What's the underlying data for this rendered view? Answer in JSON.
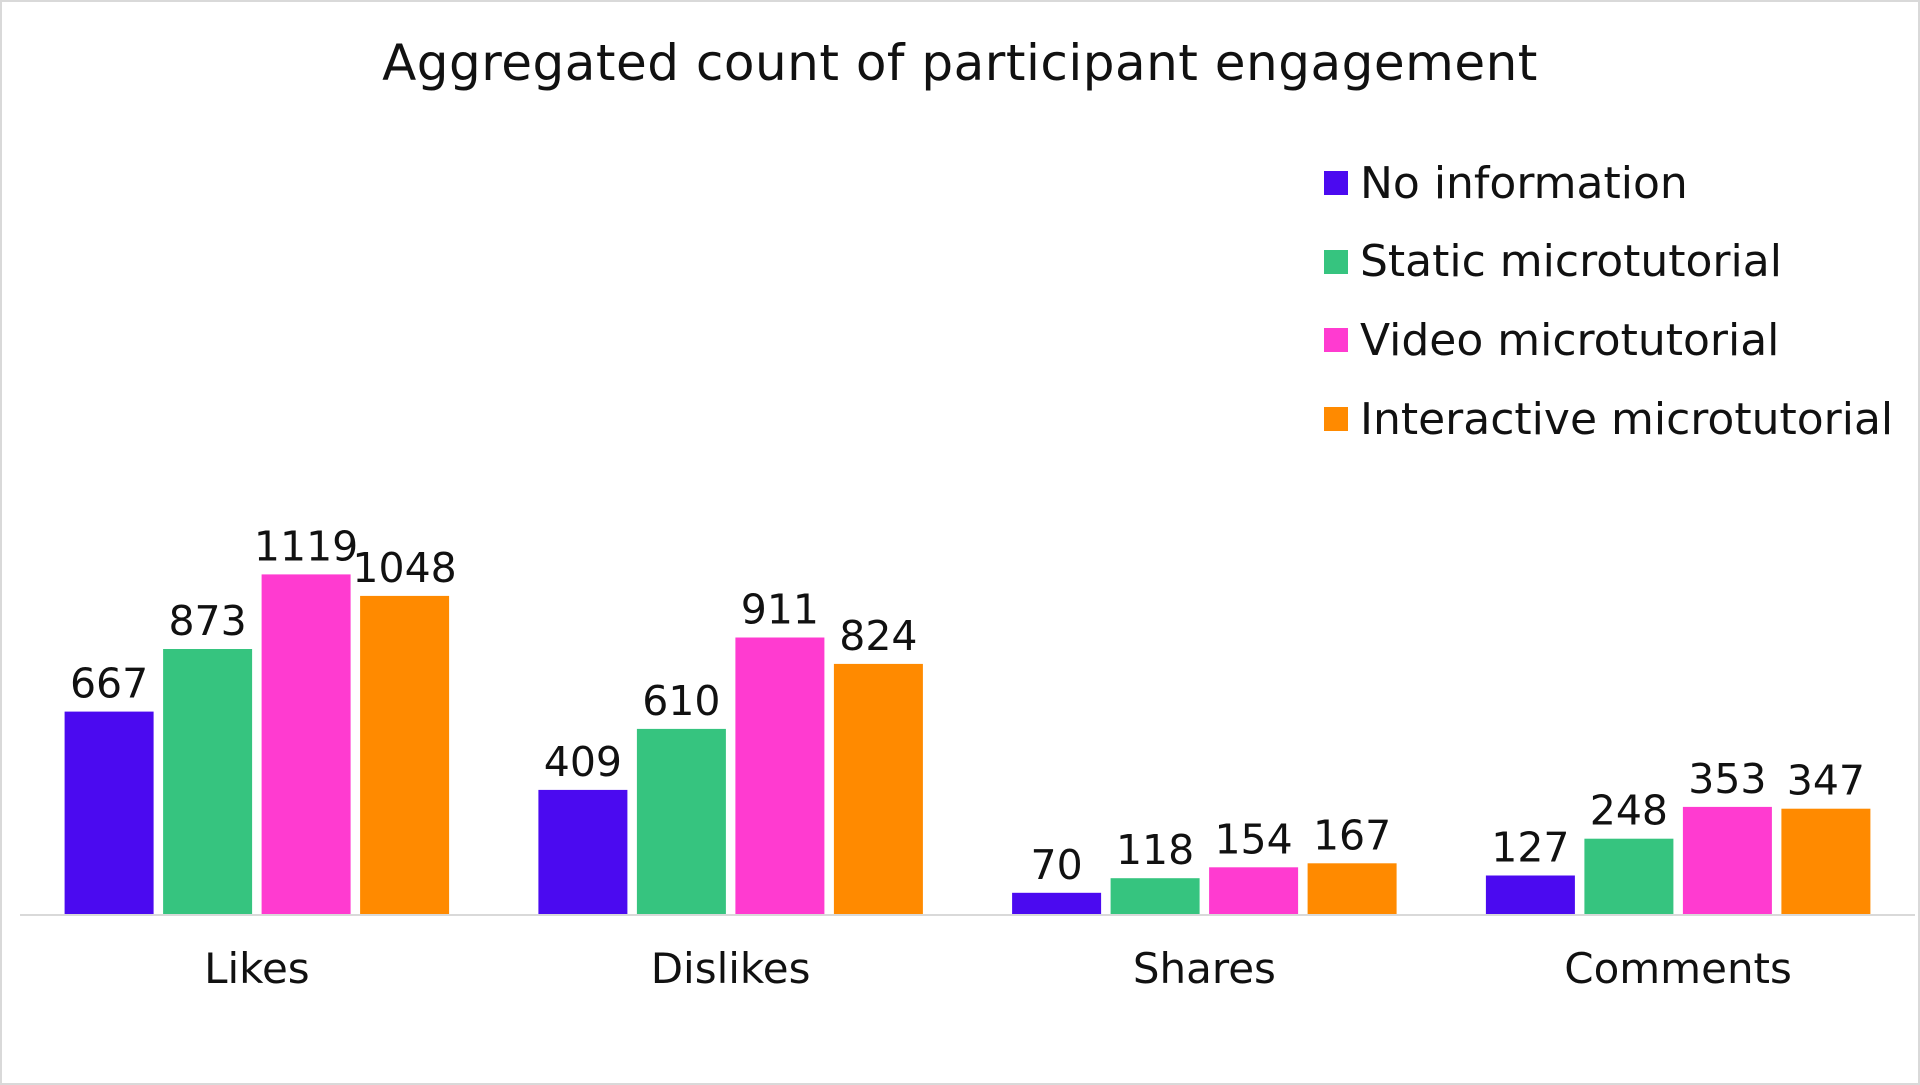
{
  "chart_data": {
    "type": "bar",
    "title": "Aggregated count of participant engagement",
    "categories": [
      "Likes",
      "Dislikes",
      "Shares",
      "Comments"
    ],
    "series": [
      {
        "name": "No information",
        "color": "#4B0AF0",
        "values": [
          667,
          409,
          70,
          127
        ]
      },
      {
        "name": "Static microtutorial",
        "color": "#36C47F",
        "values": [
          873,
          610,
          118,
          248
        ]
      },
      {
        "name": "Video microtutorial",
        "color": "#FF3BD0",
        "values": [
          1119,
          911,
          154,
          353
        ]
      },
      {
        "name": "Interactive microtutorial",
        "color": "#FF8A00",
        "values": [
          1048,
          824,
          167,
          347
        ]
      }
    ],
    "ylim": [
      0,
      1200
    ],
    "legend_position": "top-right",
    "grid": false,
    "data_labels": true
  }
}
